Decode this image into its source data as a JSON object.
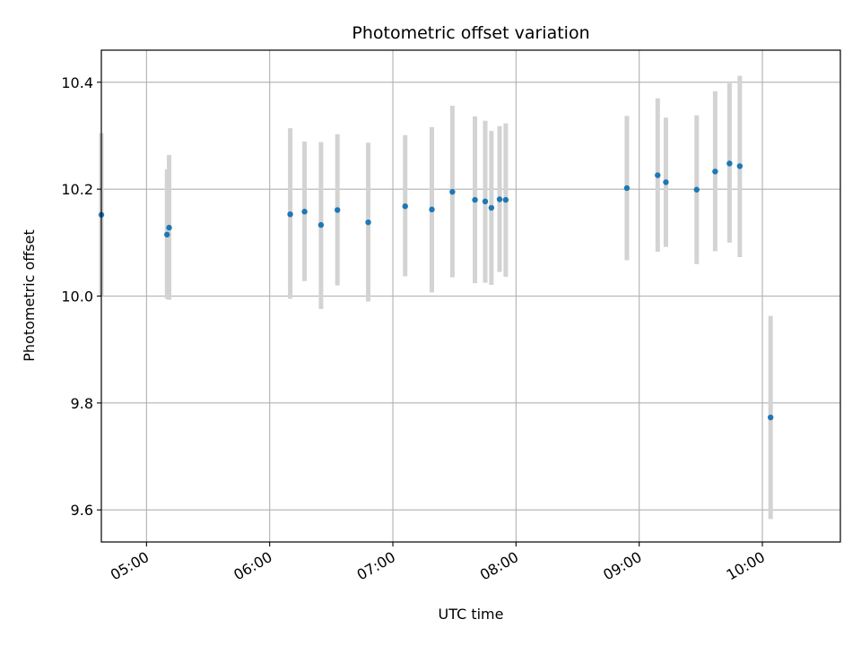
{
  "chart_data": {
    "type": "scatter",
    "title": "Photometric offset variation",
    "xlabel": "UTC time",
    "ylabel": "Photometric offset",
    "x_ticks": [
      "05:00",
      "06:00",
      "07:00",
      "08:00",
      "09:00",
      "10:00"
    ],
    "y_ticks": [
      "9.6",
      "9.8",
      "10.0",
      "10.2",
      "10.4"
    ],
    "xlim": [
      "04:38",
      "10:38"
    ],
    "ylim": [
      9.54,
      10.46
    ],
    "grid": true,
    "colors": {
      "point": "#1f77b4",
      "errorbar": "#d3d3d3",
      "grid": "#b0b0b0"
    },
    "points": [
      {
        "x": "04:38",
        "y": 10.152,
        "ylow": 10.0,
        "yhigh": 10.305
      },
      {
        "x": "05:10",
        "y": 10.115,
        "ylow": 9.995,
        "yhigh": 10.237
      },
      {
        "x": "05:11",
        "y": 10.128,
        "ylow": 9.993,
        "yhigh": 10.264
      },
      {
        "x": "06:10",
        "y": 10.153,
        "ylow": 9.995,
        "yhigh": 10.314
      },
      {
        "x": "06:17",
        "y": 10.158,
        "ylow": 10.028,
        "yhigh": 10.289
      },
      {
        "x": "06:25",
        "y": 10.133,
        "ylow": 9.976,
        "yhigh": 10.288
      },
      {
        "x": "06:33",
        "y": 10.161,
        "ylow": 10.02,
        "yhigh": 10.303
      },
      {
        "x": "06:48",
        "y": 10.138,
        "ylow": 9.99,
        "yhigh": 10.287
      },
      {
        "x": "07:06",
        "y": 10.168,
        "ylow": 10.037,
        "yhigh": 10.301
      },
      {
        "x": "07:19",
        "y": 10.162,
        "ylow": 10.007,
        "yhigh": 10.316
      },
      {
        "x": "07:29",
        "y": 10.195,
        "ylow": 10.035,
        "yhigh": 10.356
      },
      {
        "x": "07:40",
        "y": 10.18,
        "ylow": 10.024,
        "yhigh": 10.336
      },
      {
        "x": "07:45",
        "y": 10.177,
        "ylow": 10.025,
        "yhigh": 10.328
      },
      {
        "x": "07:48",
        "y": 10.165,
        "ylow": 10.021,
        "yhigh": 10.309
      },
      {
        "x": "07:52",
        "y": 10.181,
        "ylow": 10.045,
        "yhigh": 10.318
      },
      {
        "x": "07:55",
        "y": 10.18,
        "ylow": 10.036,
        "yhigh": 10.323
      },
      {
        "x": "08:54",
        "y": 10.202,
        "ylow": 10.067,
        "yhigh": 10.337
      },
      {
        "x": "09:09",
        "y": 10.226,
        "ylow": 10.083,
        "yhigh": 10.37
      },
      {
        "x": "09:13",
        "y": 10.213,
        "ylow": 10.092,
        "yhigh": 10.334
      },
      {
        "x": "09:28",
        "y": 10.199,
        "ylow": 10.06,
        "yhigh": 10.338
      },
      {
        "x": "09:37",
        "y": 10.233,
        "ylow": 10.084,
        "yhigh": 10.383
      },
      {
        "x": "09:44",
        "y": 10.248,
        "ylow": 10.1,
        "yhigh": 10.398
      },
      {
        "x": "09:49",
        "y": 10.243,
        "ylow": 10.073,
        "yhigh": 10.412
      },
      {
        "x": "10:04",
        "y": 9.773,
        "ylow": 9.583,
        "yhigh": 9.963
      }
    ]
  }
}
